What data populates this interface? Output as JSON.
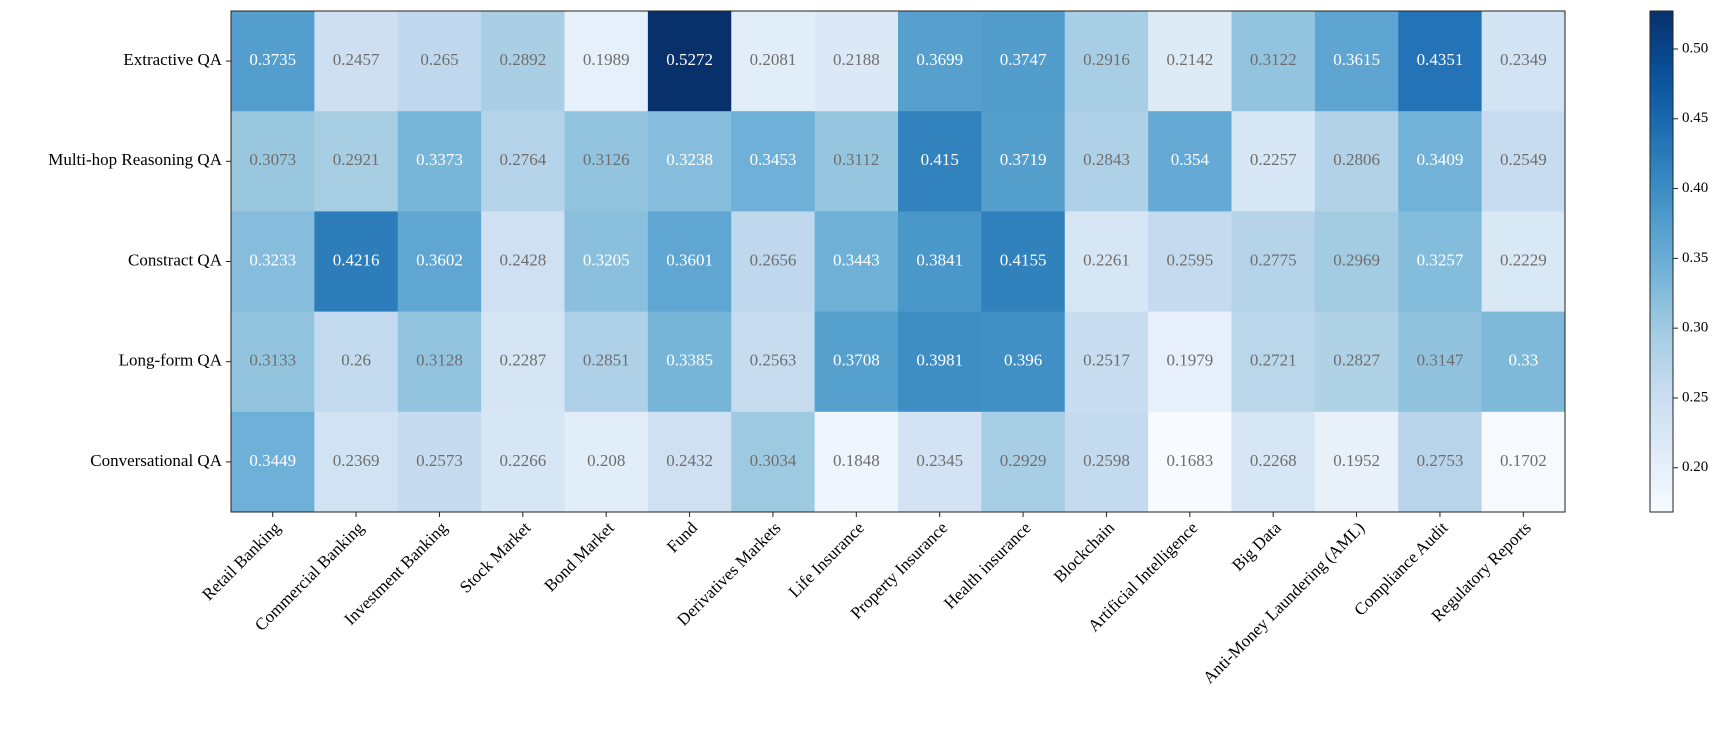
{
  "chart_data": {
    "type": "heatmap",
    "x_categories": [
      "Retail Banking",
      "Commercial Banking",
      "Investment Banking",
      "Stock Market",
      "Bond Market",
      "Fund",
      "Derivatives Markets",
      "Life Insurance",
      "Property Insurance",
      "Health insurance",
      "Blockchain",
      "Artificial Intelligence",
      "Big Data",
      "Anti-Money Laundering (AML)",
      "Compliance Audit",
      "Regulatory Reports"
    ],
    "y_categories": [
      "Extractive QA",
      "Multi-hop Reasoning QA",
      "Constract QA",
      "Long-form QA",
      "Conversational QA"
    ],
    "values": [
      [
        0.3735,
        0.2457,
        0.265,
        0.2892,
        0.1989,
        0.5272,
        0.2081,
        0.2188,
        0.3699,
        0.3747,
        0.2916,
        0.2142,
        0.3122,
        0.3615,
        0.4351,
        0.2349
      ],
      [
        0.3073,
        0.2921,
        0.3373,
        0.2764,
        0.3126,
        0.3238,
        0.3453,
        0.3112,
        0.415,
        0.3719,
        0.2843,
        0.354,
        0.2257,
        0.2806,
        0.3409,
        0.2549
      ],
      [
        0.3233,
        0.4216,
        0.3602,
        0.2428,
        0.3205,
        0.3601,
        0.2656,
        0.3443,
        0.3841,
        0.4155,
        0.2261,
        0.2595,
        0.2775,
        0.2969,
        0.3257,
        0.2229
      ],
      [
        0.3133,
        0.26,
        0.3128,
        0.2287,
        0.2851,
        0.3385,
        0.2563,
        0.3708,
        0.3981,
        0.396,
        0.2517,
        0.1979,
        0.2721,
        0.2827,
        0.3147,
        0.33
      ],
      [
        0.3449,
        0.2369,
        0.2573,
        0.2266,
        0.208,
        0.2432,
        0.3034,
        0.1848,
        0.2345,
        0.2929,
        0.2598,
        0.1683,
        0.2268,
        0.1952,
        0.2753,
        0.1702
      ]
    ],
    "colorbar_lim": [
      0.1683,
      0.5272
    ],
    "colorbar_ticks": [
      {
        "value": 0.2,
        "label": "0.20"
      },
      {
        "value": 0.25,
        "label": "0.25"
      },
      {
        "value": 0.3,
        "label": "0.30"
      },
      {
        "value": 0.35,
        "label": "0.35"
      },
      {
        "value": 0.4,
        "label": "0.40"
      },
      {
        "value": 0.45,
        "label": "0.45"
      },
      {
        "value": 0.5,
        "label": "0.50"
      }
    ]
  }
}
